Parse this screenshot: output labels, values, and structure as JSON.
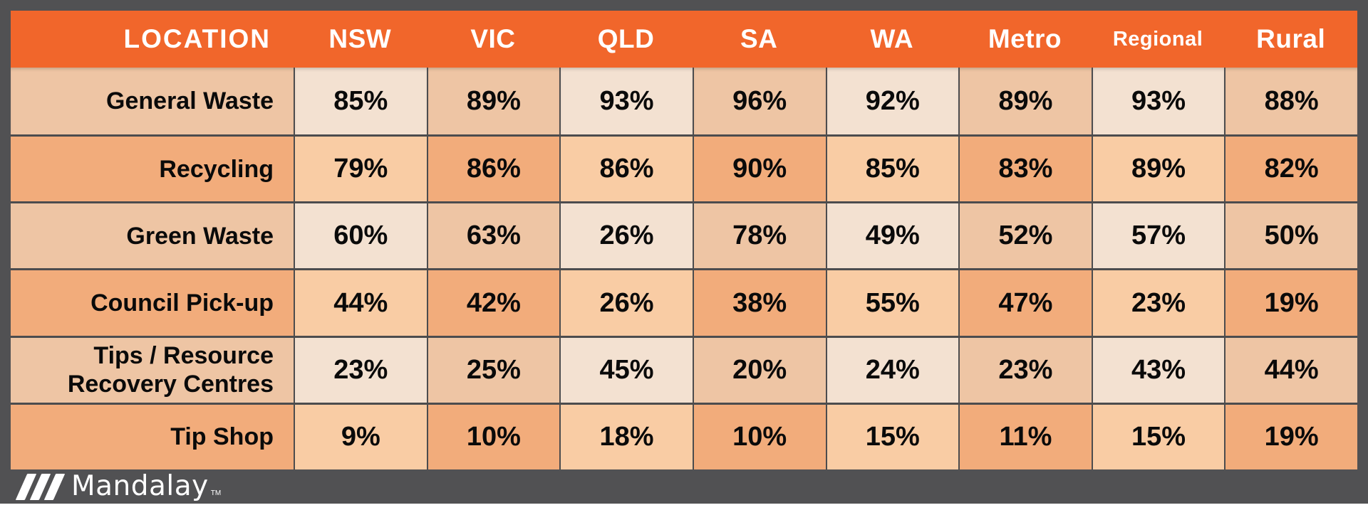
{
  "table": {
    "columns": [
      "LOCATION",
      "NSW",
      "VIC",
      "QLD",
      "SA",
      "WA",
      "Metro",
      "Regional",
      "Rural"
    ],
    "rows": [
      {
        "label": "General Waste",
        "values": [
          "85%",
          "89%",
          "93%",
          "96%",
          "92%",
          "89%",
          "93%",
          "88%"
        ]
      },
      {
        "label": "Recycling",
        "values": [
          "79%",
          "86%",
          "86%",
          "90%",
          "85%",
          "83%",
          "89%",
          "82%"
        ]
      },
      {
        "label": "Green Waste",
        "values": [
          "60%",
          "63%",
          "26%",
          "78%",
          "49%",
          "52%",
          "57%",
          "50%"
        ]
      },
      {
        "label": "Council Pick-up",
        "values": [
          "44%",
          "42%",
          "26%",
          "38%",
          "55%",
          "47%",
          "23%",
          "19%"
        ]
      },
      {
        "label": "Tips / Resource\nRecovery Centres",
        "values": [
          "23%",
          "25%",
          "45%",
          "20%",
          "24%",
          "23%",
          "43%",
          "44%"
        ]
      },
      {
        "label": "Tip Shop",
        "values": [
          "9%",
          "10%",
          "18%",
          "10%",
          "15%",
          "11%",
          "15%",
          "19%"
        ]
      }
    ]
  },
  "footer": {
    "brand": "Mandalay",
    "trademark": "TM"
  },
  "colors": {
    "header_bg": "#F1662B",
    "header_text": "#FFFFFF",
    "frame_bg": "#515153",
    "border": "#4C4C4E",
    "cell_light_row_dark_col": "#EEC5A4",
    "cell_light_row_light_col": "#F3E1D1",
    "cell_dark_row_dark_col": "#F2AC7B",
    "cell_dark_row_light_col": "#F9CCA4",
    "cell_text": "#0A0A0A",
    "bottom_strip": "#FFFFFF"
  },
  "chart_data": {
    "type": "table",
    "unit": "percent",
    "columns": [
      "LOCATION",
      "NSW",
      "VIC",
      "QLD",
      "SA",
      "WA",
      "Metro",
      "Regional",
      "Rural"
    ],
    "rows": [
      {
        "location": "General Waste",
        "values": [
          85,
          89,
          93,
          96,
          92,
          89,
          93,
          88
        ]
      },
      {
        "location": "Recycling",
        "values": [
          79,
          86,
          86,
          90,
          85,
          83,
          89,
          82
        ]
      },
      {
        "location": "Green Waste",
        "values": [
          60,
          63,
          26,
          78,
          49,
          52,
          57,
          50
        ]
      },
      {
        "location": "Council Pick-up",
        "values": [
          44,
          42,
          26,
          38,
          55,
          47,
          23,
          19
        ]
      },
      {
        "location": "Tips / Resource Recovery Centres",
        "values": [
          23,
          25,
          45,
          20,
          24,
          23,
          43,
          44
        ]
      },
      {
        "location": "Tip Shop",
        "values": [
          9,
          10,
          18,
          10,
          15,
          11,
          15,
          19
        ]
      }
    ],
    "layout": {
      "shading": "checkerboard of alternating peach/orange tones",
      "legend": "none",
      "grid": "dark gray cell borders"
    }
  }
}
